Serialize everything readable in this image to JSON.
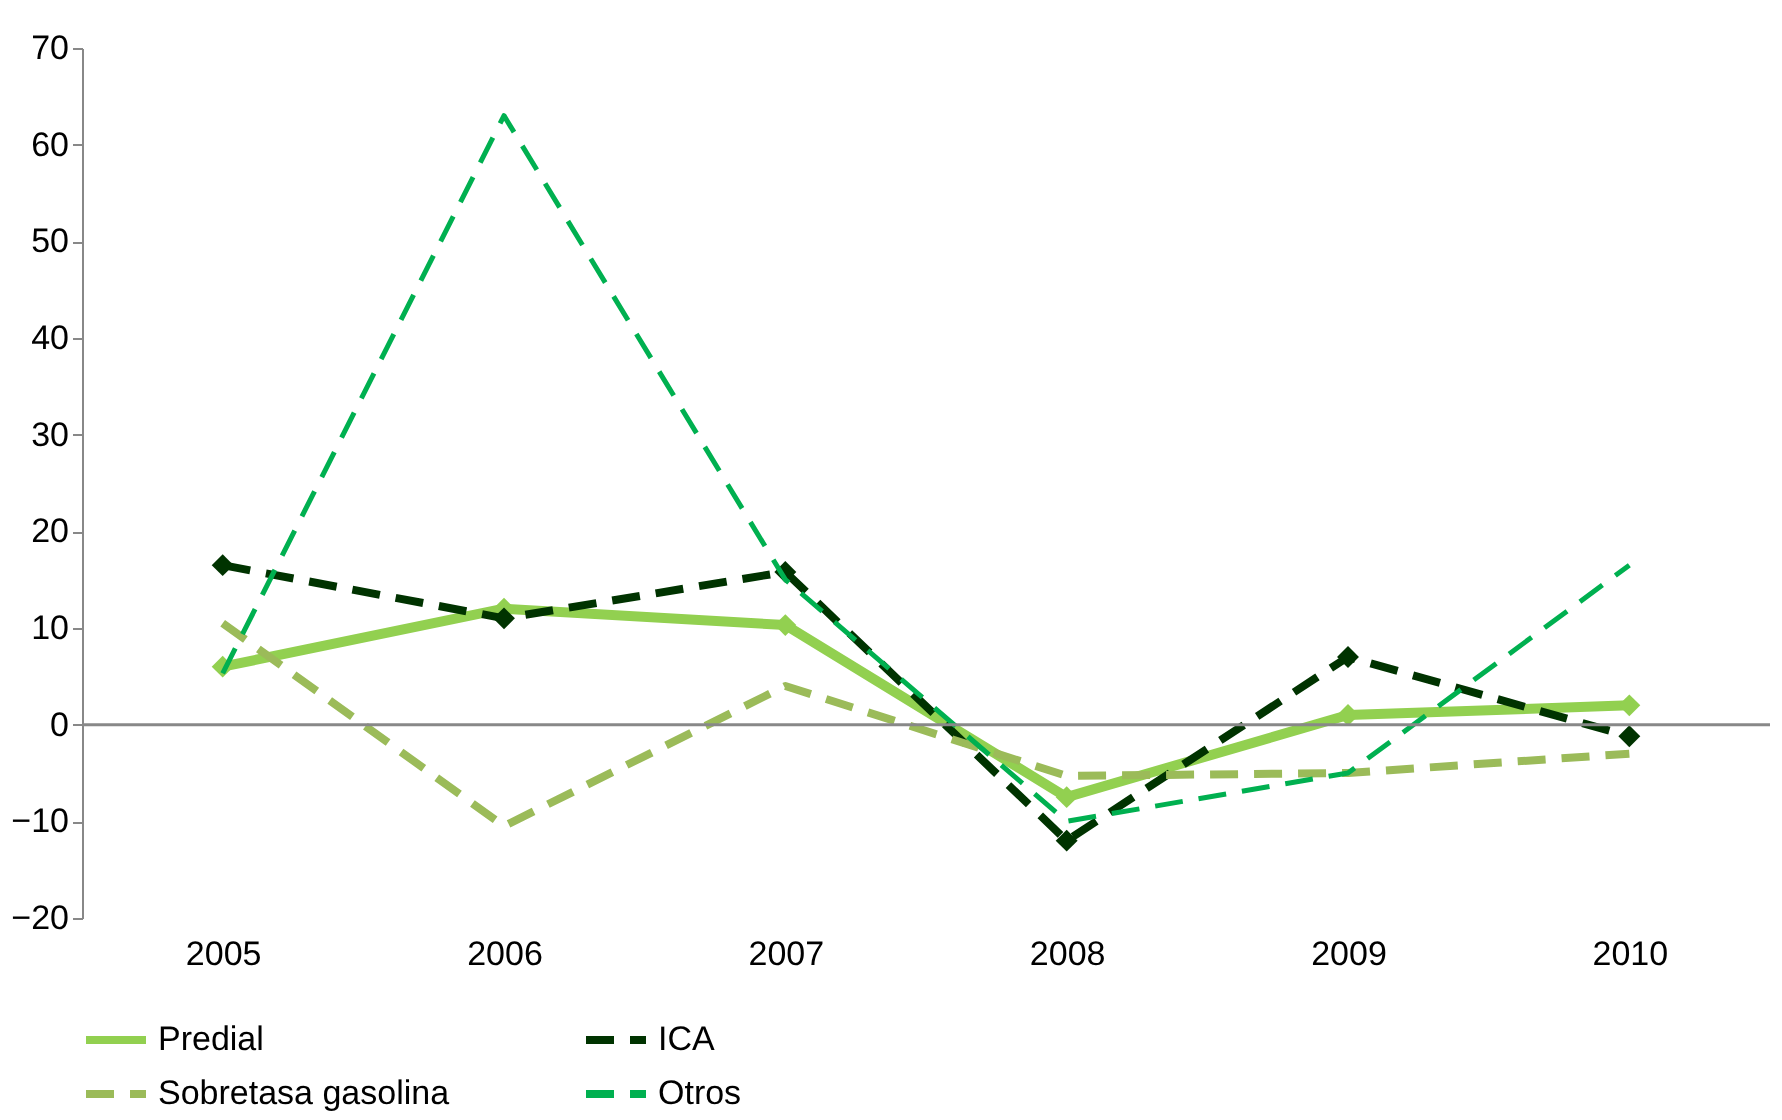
{
  "chart_data": {
    "type": "line",
    "categories": [
      "2005",
      "2006",
      "2007",
      "2008",
      "2009",
      "2010"
    ],
    "series": [
      {
        "name": "Predial",
        "color": "#92d050",
        "line_style": "solid",
        "marker": "diamond",
        "values": [
          6,
          12,
          10.3,
          -7.5,
          1,
          2
        ]
      },
      {
        "name": "ICA",
        "color": "#003300",
        "line_style": "dashed",
        "marker": "diamond",
        "values": [
          16.5,
          11,
          15.8,
          -12,
          7,
          -1.2
        ]
      },
      {
        "name": "Sobretasa gasolina",
        "color": "#9bbb59",
        "line_style": "dashed",
        "marker": "none",
        "values": [
          10.5,
          -10.5,
          4,
          -5.3,
          -5,
          -3
        ]
      },
      {
        "name": "Otros",
        "color": "#00b050",
        "line_style": "dashed",
        "marker": "none",
        "values": [
          5.3,
          63,
          15,
          -10,
          -5,
          16.5
        ]
      }
    ],
    "ylim": [
      -20,
      70
    ],
    "yticks": [
      -20,
      -10,
      0,
      10,
      20,
      30,
      40,
      50,
      60,
      70
    ],
    "ref_lines": [
      {
        "axis": "y",
        "value": 0,
        "color": "#888888"
      }
    ],
    "grid": false,
    "legend": "bottom"
  }
}
